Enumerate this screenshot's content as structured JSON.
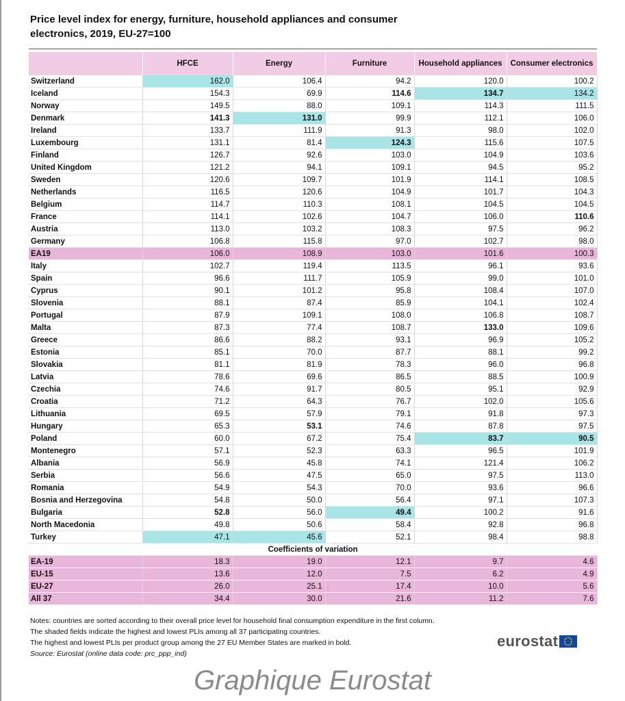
{
  "title": "Price level index for energy, furniture, household appliances and consumer electronics, 2019, EU-27=100",
  "table": {
    "columns": [
      "HFCE",
      "Energy",
      "Furniture",
      "Household appliances",
      "Consumer electronics"
    ],
    "rows": [
      [
        "Switzerland",
        "162.0",
        "106.4",
        "94.2",
        "120.0",
        "100.2"
      ],
      [
        "Iceland",
        "154.3",
        "69.9",
        "114.6",
        "134.7",
        "134.2"
      ],
      [
        "Norway",
        "149.5",
        "88.0",
        "109.1",
        "114.3",
        "111.5"
      ],
      [
        "Denmark",
        "141.3",
        "131.0",
        "99.9",
        "112.1",
        "106.0"
      ],
      [
        "Ireland",
        "133.7",
        "111.9",
        "91.3",
        "98.0",
        "102.0"
      ],
      [
        "Luxembourg",
        "131.1",
        "81.4",
        "124.3",
        "115.6",
        "107.5"
      ],
      [
        "Finland",
        "126.7",
        "92.6",
        "103.0",
        "104.9",
        "103.6"
      ],
      [
        "United Kingdom",
        "121.2",
        "94.1",
        "109.1",
        "94.5",
        "95.2"
      ],
      [
        "Sweden",
        "120.6",
        "109.7",
        "101.9",
        "114.1",
        "108.5"
      ],
      [
        "Netherlands",
        "116.5",
        "120.6",
        "104.9",
        "101.7",
        "104.3"
      ],
      [
        "Belgium",
        "114.7",
        "110.3",
        "108.1",
        "104.5",
        "104.5"
      ],
      [
        "France",
        "114.1",
        "102.6",
        "104.7",
        "106.0",
        "110.6"
      ],
      [
        "Austria",
        "113.0",
        "103.2",
        "108.3",
        "97.5",
        "96.2"
      ],
      [
        "Germany",
        "106.8",
        "115.8",
        "97.0",
        "102.7",
        "98.0"
      ],
      [
        "EA19",
        "106.0",
        "108.9",
        "103.0",
        "101.6",
        "100.3"
      ],
      [
        "Italy",
        "102.7",
        "119.4",
        "113.5",
        "96.1",
        "93.6"
      ],
      [
        "Spain",
        "96.6",
        "111.7",
        "105.9",
        "99.0",
        "101.0"
      ],
      [
        "Cyprus",
        "90.1",
        "101.2",
        "95.8",
        "108.4",
        "107.0"
      ],
      [
        "Slovenia",
        "88.1",
        "87.4",
        "85.9",
        "104.1",
        "102.4"
      ],
      [
        "Portugal",
        "87.9",
        "109.1",
        "108.0",
        "106.8",
        "108.7"
      ],
      [
        "Malta",
        "87.3",
        "77.4",
        "108.7",
        "133.0",
        "109.6"
      ],
      [
        "Greece",
        "86.6",
        "88.2",
        "93.1",
        "96.9",
        "105.2"
      ],
      [
        "Estonia",
        "85.1",
        "70.0",
        "87.7",
        "88.1",
        "99.2"
      ],
      [
        "Slovakia",
        "81.1",
        "81.9",
        "78.3",
        "96.0",
        "96.8"
      ],
      [
        "Latvia",
        "78.6",
        "69.6",
        "86.5",
        "88.5",
        "100.9"
      ],
      [
        "Czechia",
        "74.6",
        "91.7",
        "80.5",
        "95.1",
        "92.9"
      ],
      [
        "Croatia",
        "71.2",
        "64.3",
        "76.7",
        "102.0",
        "105.6"
      ],
      [
        "Lithuania",
        "69.5",
        "57.9",
        "79.1",
        "91.8",
        "97.3"
      ],
      [
        "Hungary",
        "65.3",
        "53.1",
        "74.6",
        "87.8",
        "97.5"
      ],
      [
        "Poland",
        "60.0",
        "67.2",
        "75.4",
        "83.7",
        "90.5"
      ],
      [
        "Montenegro",
        "57.1",
        "52.3",
        "63.3",
        "96.5",
        "101.9"
      ],
      [
        "Albania",
        "56.9",
        "45.8",
        "74.1",
        "121.4",
        "106.2"
      ],
      [
        "Serbia",
        "56.6",
        "47.5",
        "65.0",
        "97.5",
        "113.0"
      ],
      [
        "Romania",
        "54.9",
        "54.3",
        "70.0",
        "93.6",
        "96.6"
      ],
      [
        "Bosnia and Herzegovina",
        "54.8",
        "50.0",
        "56.4",
        "97.1",
        "107.3"
      ],
      [
        "Bulgaria",
        "52.8",
        "56.0",
        "49.4",
        "100.2",
        "91.6"
      ],
      [
        "North Macedonia",
        "49.8",
        "50.6",
        "58.4",
        "92.8",
        "96.8"
      ],
      [
        "Turkey",
        "47.1",
        "45.6",
        "52.1",
        "98.4",
        "98.8"
      ]
    ],
    "cv_title": "Coefficients of variation",
    "cv_rows": [
      [
        "EA-19",
        "18.3",
        "19.0",
        "12.1",
        "9.7",
        "4.6"
      ],
      [
        "EU-15",
        "13.6",
        "12.0",
        "7.5",
        "6.2",
        "4.9"
      ],
      [
        "EU-27",
        "26.0",
        "25.1",
        "17.4",
        "10.0",
        "5.6"
      ],
      [
        "All 37",
        "34.4",
        "30.0",
        "21.6",
        "11.2",
        "7.6"
      ]
    ]
  },
  "notes": [
    "Notes: countries are sorted according to their overall price level for household final consumption expenditure in the first column.",
    "The shaded fields indicate the highest and lowest PLIs among all 37 participating countries.",
    "The highest and lowest PLIs per product group among the 27 EU Member States are marked in bold."
  ],
  "source": "Source: Eurostat (online data code: prc_ppp_ind)",
  "logo": "eurostat",
  "watermark": "Graphique Eurostat"
}
